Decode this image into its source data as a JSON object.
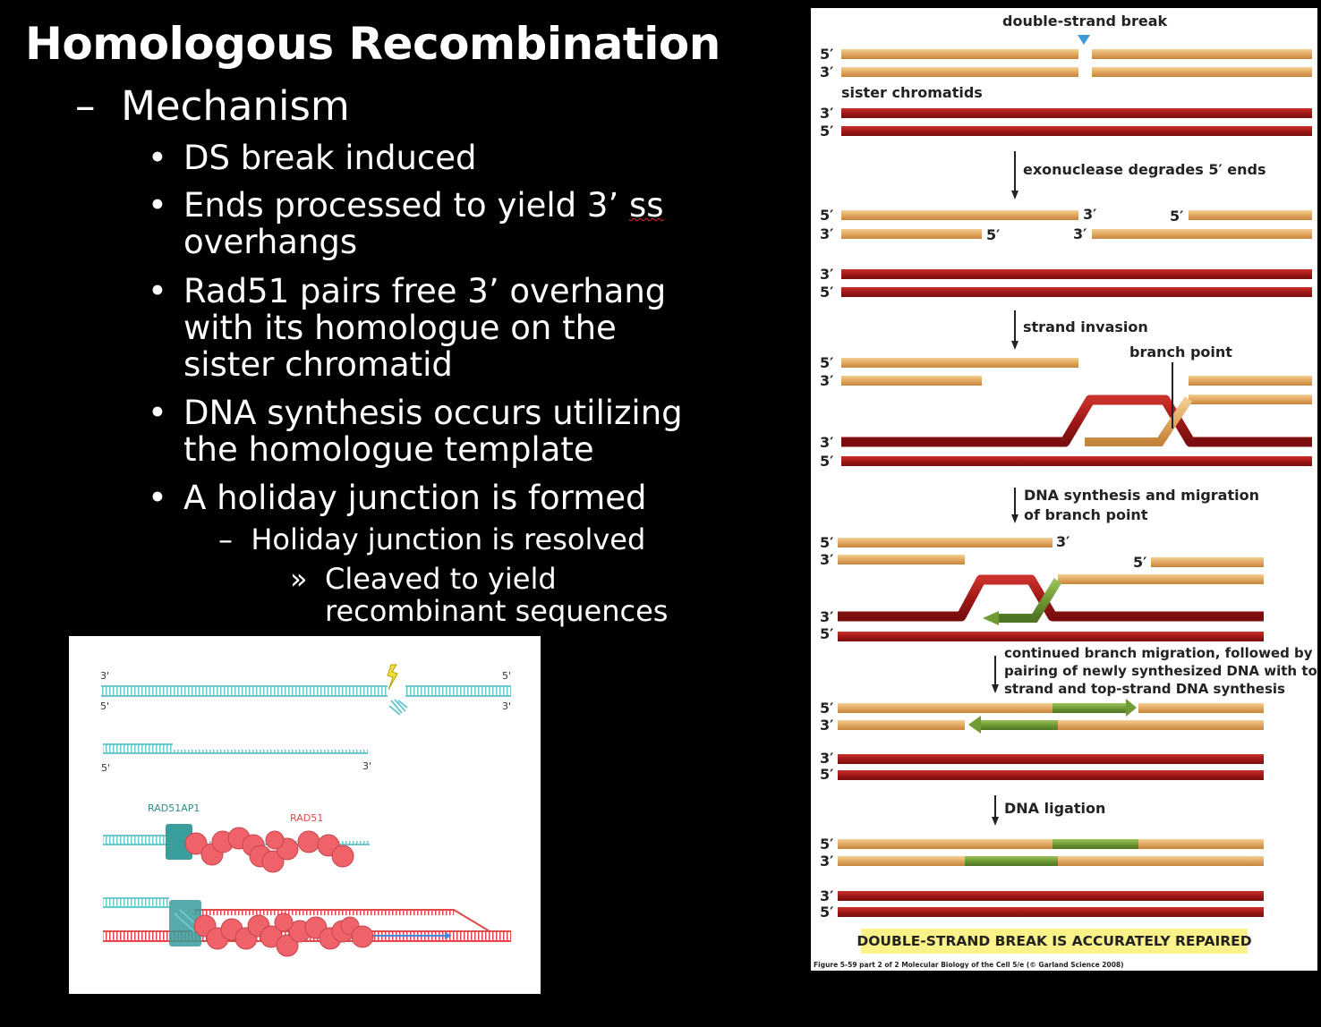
{
  "slide": {
    "title": "Homologous Recombination",
    "level1": "Mechanism",
    "bullets": [
      {
        "lines": [
          "DS break induced"
        ]
      },
      {
        "lines": [
          "Ends processed to yield 3’ ss",
          "overhangs"
        ]
      },
      {
        "lines": [
          "Rad51 pairs free 3’ overhang",
          "with its homologue on the",
          "sister chromatid"
        ]
      },
      {
        "lines": [
          "DNA synthesis occurs utilizing",
          "the homologue template"
        ]
      },
      {
        "lines": [
          "A holiday junction is formed"
        ]
      }
    ],
    "level3": "Holiday junction is resolved",
    "level4": [
      "Cleaved to yield",
      "recombinant sequences"
    ],
    "dash": "–",
    "bullet_char": "•",
    "sub_marker": "»"
  },
  "left_figure": {
    "end_labels": {
      "three": "3'",
      "five": "5'"
    },
    "rad51ap1": "RAD51AP1",
    "rad51": "RAD51",
    "colors": {
      "cyan": "#6cc7cf",
      "red": "#e04a4a",
      "teal": "#3a9e9c",
      "ball": "#f0626a",
      "blue": "#3a8fd8"
    }
  },
  "right_figure": {
    "labels": {
      "break": "double-strand break",
      "sister": "sister chromatids",
      "step1": "exonuclease degrades 5′ ends",
      "step2": "strand invasion",
      "branch": "branch point",
      "step3a": "DNA synthesis and migration",
      "step3b": "of branch point",
      "step4a": "continued branch migration, followed by",
      "step4b": "pairing of newly synthesized DNA with top",
      "step4c": "strand and top-strand DNA synthesis",
      "step5": "DNA ligation",
      "result": "DOUBLE-STRAND BREAK IS ACCURATELY REPAIRED",
      "caption": "Figure 5-59 part 2 of 2  Molecular Biology of the Cell 5/e (© Garland Science 2008)"
    },
    "ends": {
      "five": "5′",
      "three": "3′"
    },
    "colors": {
      "tan": "#e2a862",
      "tan_light": "#f3cf92",
      "red": "#a01818",
      "green": "#6f9a34",
      "blue": "#3b9ad9",
      "result_bg": "#fbf28a"
    }
  }
}
